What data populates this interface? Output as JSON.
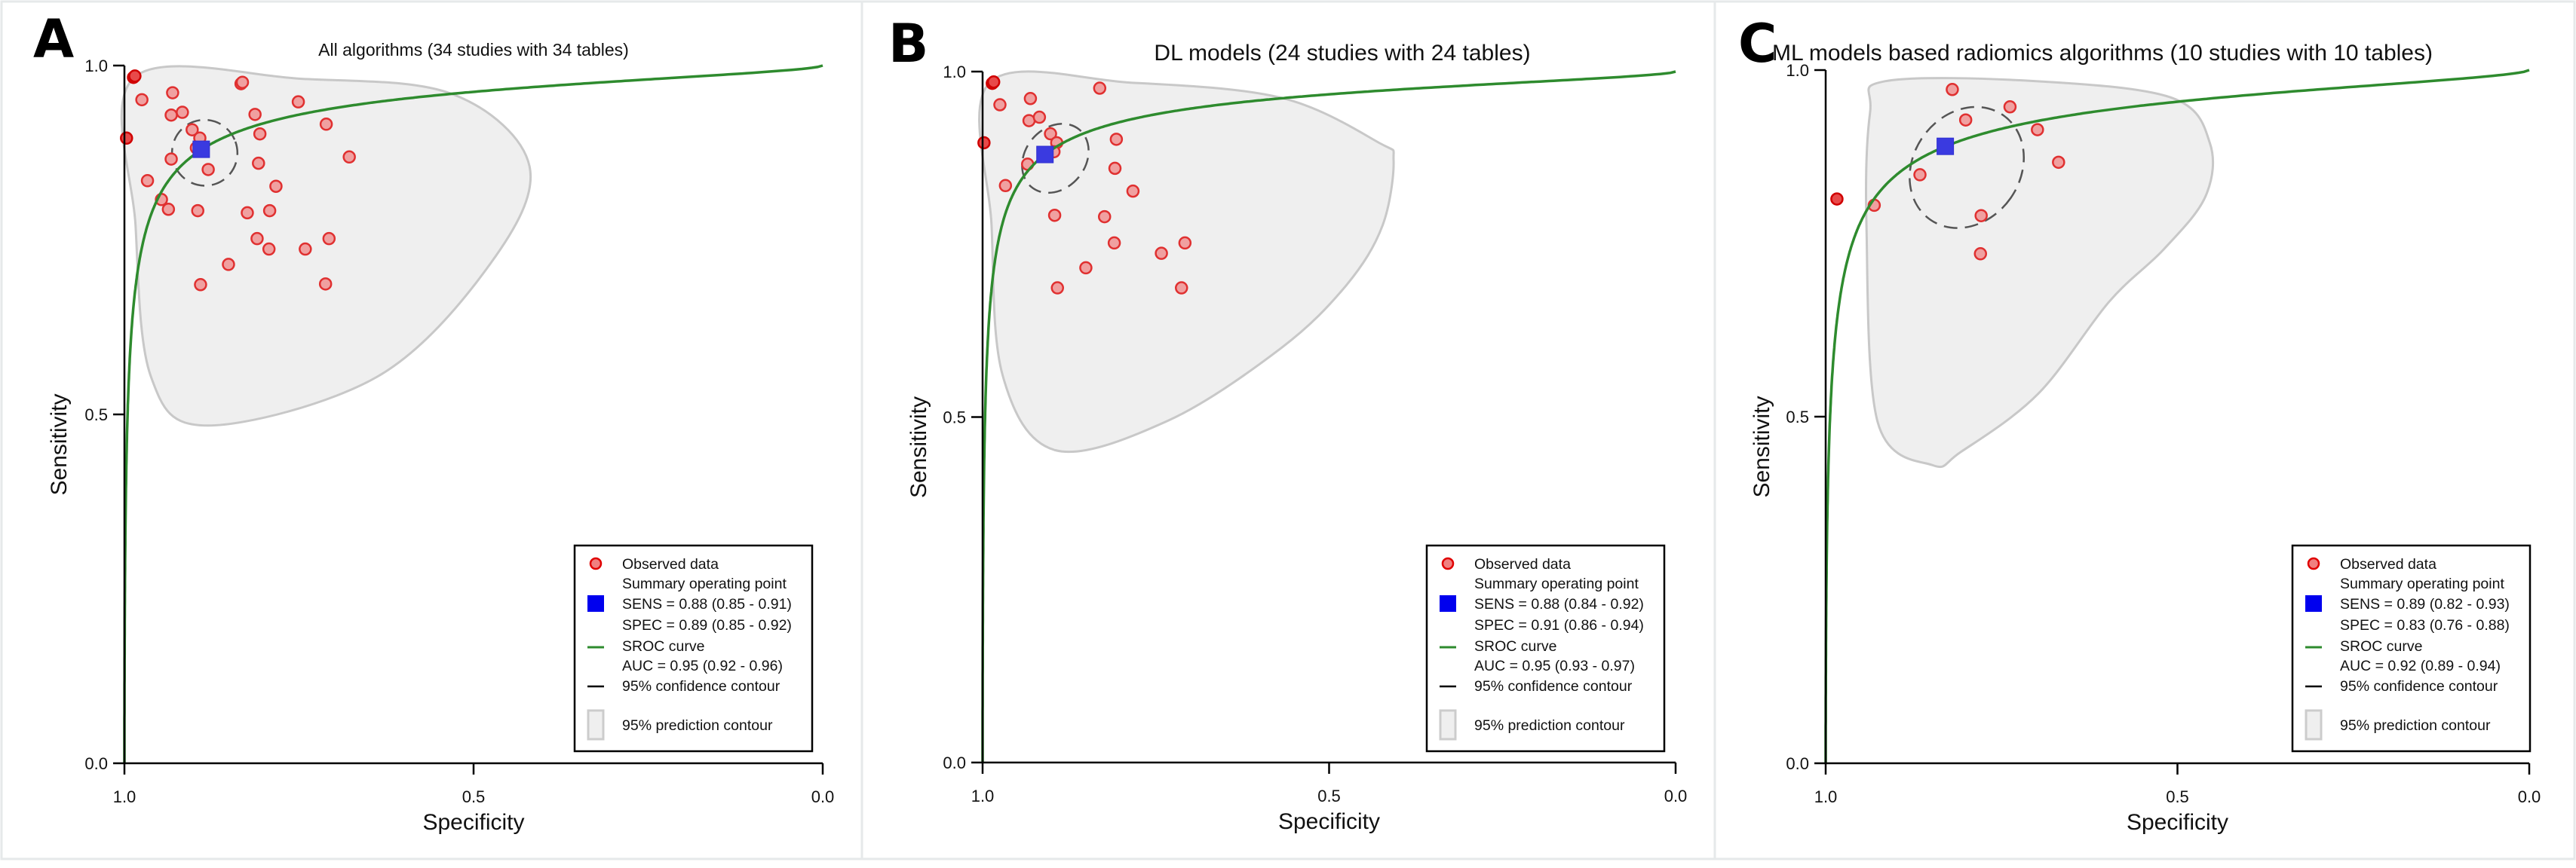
{
  "chart_data": [
    {
      "type": "scatter",
      "panel_label": "A",
      "title": "All algorithms (34 studies with 34 tables)",
      "xlabel": "Specificity",
      "ylabel": "Sensitivity",
      "xlim": [
        1.0,
        0.0
      ],
      "ylim": [
        0.0,
        1.0
      ],
      "xticks": [
        "1.0",
        "0.5",
        "0.0"
      ],
      "yticks": [
        "0.0",
        "0.5",
        "1.0"
      ],
      "grid": false,
      "legend_position": "bottom-right",
      "observed_data": [
        {
          "spec": 0.987,
          "sens": 0.983
        },
        {
          "spec": 0.985,
          "sens": 0.985
        },
        {
          "spec": 0.975,
          "sens": 0.951
        },
        {
          "spec": 0.931,
          "sens": 0.961
        },
        {
          "spec": 0.933,
          "sens": 0.929
        },
        {
          "spec": 0.917,
          "sens": 0.933
        },
        {
          "spec": 0.903,
          "sens": 0.908
        },
        {
          "spec": 0.892,
          "sens": 0.896
        },
        {
          "spec": 0.897,
          "sens": 0.882
        },
        {
          "spec": 0.997,
          "sens": 0.896
        },
        {
          "spec": 0.933,
          "sens": 0.866
        },
        {
          "spec": 0.88,
          "sens": 0.851
        },
        {
          "spec": 0.967,
          "sens": 0.835
        },
        {
          "spec": 0.947,
          "sens": 0.808
        },
        {
          "spec": 0.937,
          "sens": 0.794
        },
        {
          "spec": 0.895,
          "sens": 0.792
        },
        {
          "spec": 0.833,
          "sens": 0.974
        },
        {
          "spec": 0.831,
          "sens": 0.976
        },
        {
          "spec": 0.813,
          "sens": 0.93
        },
        {
          "spec": 0.806,
          "sens": 0.902
        },
        {
          "spec": 0.808,
          "sens": 0.86
        },
        {
          "spec": 0.783,
          "sens": 0.827
        },
        {
          "spec": 0.824,
          "sens": 0.789
        },
        {
          "spec": 0.792,
          "sens": 0.792
        },
        {
          "spec": 0.81,
          "sens": 0.752
        },
        {
          "spec": 0.793,
          "sens": 0.737
        },
        {
          "spec": 0.851,
          "sens": 0.715
        },
        {
          "spec": 0.891,
          "sens": 0.686
        },
        {
          "spec": 0.751,
          "sens": 0.948
        },
        {
          "spec": 0.711,
          "sens": 0.916
        },
        {
          "spec": 0.678,
          "sens": 0.869
        },
        {
          "spec": 0.707,
          "sens": 0.752
        },
        {
          "spec": 0.741,
          "sens": 0.737
        },
        {
          "spec": 0.712,
          "sens": 0.687
        }
      ],
      "summary_point": {
        "sens": 0.88,
        "sens_ci": [
          0.85,
          0.91
        ],
        "spec": 0.89,
        "spec_ci": [
          0.85,
          0.92
        ]
      },
      "confidence_contour": {
        "spec_range": [
          0.94,
          0.83
        ],
        "sens_range": [
          0.92,
          0.83
        ]
      },
      "sroc": {
        "auc": 0.95,
        "auc_ci": [
          0.92,
          0.96
        ],
        "logit_intercept": 3.24,
        "logit_slope": 0.6
      },
      "prediction_contour": [
        {
          "spec": 0.986,
          "sens": 0.983
        },
        {
          "spec": 0.746,
          "sens": 0.981
        },
        {
          "spec": 0.53,
          "sens": 0.959
        },
        {
          "spec": 0.42,
          "sens": 0.856
        },
        {
          "spec": 0.476,
          "sens": 0.716
        },
        {
          "spec": 0.638,
          "sens": 0.554
        },
        {
          "spec": 0.88,
          "sens": 0.484
        },
        {
          "spec": 0.962,
          "sens": 0.554
        },
        {
          "spec": 0.984,
          "sens": 0.77
        }
      ],
      "legend": {
        "observed": "Observed data",
        "summary_title": "Summary operating point",
        "sens_line": "SENS = 0.88 (0.85 - 0.91)",
        "spec_line": "SPEC = 0.89 (0.85 - 0.92)",
        "sroc_title": "SROC curve",
        "auc_line": "AUC = 0.95 (0.92 - 0.96)",
        "confidence": "95% confidence contour",
        "prediction": "95% prediction contour"
      }
    },
    {
      "type": "scatter",
      "panel_label": "B",
      "title": "DL models (24 studies with 24 tables)",
      "xlabel": "Specificity",
      "ylabel": "Sensitivity",
      "xlim": [
        1.0,
        0.0
      ],
      "ylim": [
        0.0,
        1.0
      ],
      "xticks": [
        "1.0",
        "0.5",
        "0.0"
      ],
      "yticks": [
        "0.0",
        "0.5",
        "1.0"
      ],
      "grid": false,
      "legend_position": "bottom-right",
      "observed_data": [
        {
          "spec": 0.986,
          "sens": 0.983
        },
        {
          "spec": 0.984,
          "sens": 0.985
        },
        {
          "spec": 0.975,
          "sens": 0.952
        },
        {
          "spec": 0.931,
          "sens": 0.961
        },
        {
          "spec": 0.933,
          "sens": 0.929
        },
        {
          "spec": 0.918,
          "sens": 0.934
        },
        {
          "spec": 0.902,
          "sens": 0.91
        },
        {
          "spec": 0.893,
          "sens": 0.897
        },
        {
          "spec": 0.897,
          "sens": 0.884
        },
        {
          "spec": 0.998,
          "sens": 0.897
        },
        {
          "spec": 0.935,
          "sens": 0.866
        },
        {
          "spec": 0.967,
          "sens": 0.835
        },
        {
          "spec": 0.831,
          "sens": 0.976
        },
        {
          "spec": 0.807,
          "sens": 0.902
        },
        {
          "spec": 0.809,
          "sens": 0.86
        },
        {
          "spec": 0.783,
          "sens": 0.827
        },
        {
          "spec": 0.896,
          "sens": 0.792
        },
        {
          "spec": 0.824,
          "sens": 0.79
        },
        {
          "spec": 0.81,
          "sens": 0.752
        },
        {
          "spec": 0.708,
          "sens": 0.752
        },
        {
          "spec": 0.742,
          "sens": 0.737
        },
        {
          "spec": 0.851,
          "sens": 0.716
        },
        {
          "spec": 0.892,
          "sens": 0.687
        },
        {
          "spec": 0.713,
          "sens": 0.687
        }
      ],
      "summary_point": {
        "sens": 0.88,
        "sens_ci": [
          0.84,
          0.92
        ],
        "spec": 0.91,
        "spec_ci": [
          0.86,
          0.94
        ]
      },
      "confidence_contour": {
        "spec_range": [
          0.946,
          0.844
        ],
        "sens_range": [
          0.926,
          0.823
        ]
      },
      "sroc": {
        "auc": 0.95,
        "auc_ci": [
          0.93,
          0.97
        ],
        "logit_intercept": 3.38,
        "logit_slope": 0.6
      },
      "prediction_contour": [
        {
          "spec": 0.99,
          "sens": 0.984
        },
        {
          "spec": 0.786,
          "sens": 0.984
        },
        {
          "spec": 0.569,
          "sens": 0.962
        },
        {
          "spec": 0.428,
          "sens": 0.897
        },
        {
          "spec": 0.407,
          "sens": 0.872
        },
        {
          "spec": 0.423,
          "sens": 0.777
        },
        {
          "spec": 0.475,
          "sens": 0.691
        },
        {
          "spec": 0.569,
          "sens": 0.6
        },
        {
          "spec": 0.732,
          "sens": 0.495
        },
        {
          "spec": 0.895,
          "sens": 0.452
        },
        {
          "spec": 0.971,
          "sens": 0.56
        },
        {
          "spec": 0.987,
          "sens": 0.777
        }
      ],
      "legend": {
        "observed": "Observed data",
        "summary_title": "Summary operating point",
        "sens_line": "SENS = 0.88 (0.84 - 0.92)",
        "spec_line": "SPEC = 0.91 (0.86 - 0.94)",
        "sroc_title": "SROC curve",
        "auc_line": "AUC = 0.95 (0.93 - 0.97)",
        "confidence": "95% confidence contour",
        "prediction": "95% prediction contour"
      }
    },
    {
      "type": "scatter",
      "panel_label": "C",
      "title": "ML models based radiomics algorithms (10 studies with 10 tables)",
      "xlabel": "Specificity",
      "ylabel": "Sensitivity",
      "xlim": [
        1.0,
        0.0
      ],
      "ylim": [
        0.0,
        1.0
      ],
      "xticks": [
        "1.0",
        "0.5",
        "0.0"
      ],
      "yticks": [
        "0.0",
        "0.5",
        "1.0"
      ],
      "grid": false,
      "legend_position": "bottom-right",
      "observed_data": [
        {
          "spec": 0.82,
          "sens": 0.972
        },
        {
          "spec": 0.738,
          "sens": 0.947
        },
        {
          "spec": 0.801,
          "sens": 0.928
        },
        {
          "spec": 0.699,
          "sens": 0.914
        },
        {
          "spec": 0.669,
          "sens": 0.867
        },
        {
          "spec": 0.866,
          "sens": 0.849
        },
        {
          "spec": 0.984,
          "sens": 0.814
        },
        {
          "spec": 0.931,
          "sens": 0.805
        },
        {
          "spec": 0.779,
          "sens": 0.79
        },
        {
          "spec": 0.78,
          "sens": 0.735
        }
      ],
      "summary_point": {
        "sens": 0.89,
        "sens_ci": [
          0.82,
          0.93
        ],
        "spec": 0.83,
        "spec_ci": [
          0.76,
          0.88
        ]
      },
      "confidence_contour": {
        "spec_range": [
          0.889,
          0.71
        ],
        "sens_range": [
          0.947,
          0.772
        ]
      },
      "sroc": {
        "auc": 0.92,
        "auc_ci": [
          0.89,
          0.94
        ],
        "logit_intercept": 3.04,
        "logit_slope": 0.6
      },
      "prediction_contour": [
        {
          "spec": 0.915,
          "sens": 0.984
        },
        {
          "spec": 0.701,
          "sens": 0.984
        },
        {
          "spec": 0.508,
          "sens": 0.96
        },
        {
          "spec": 0.454,
          "sens": 0.895
        },
        {
          "spec": 0.46,
          "sens": 0.818
        },
        {
          "spec": 0.519,
          "sens": 0.742
        },
        {
          "spec": 0.597,
          "sens": 0.666
        },
        {
          "spec": 0.698,
          "sens": 0.533
        },
        {
          "spec": 0.808,
          "sens": 0.449
        },
        {
          "spec": 0.848,
          "sens": 0.43
        },
        {
          "spec": 0.926,
          "sens": 0.492
        },
        {
          "spec": 0.942,
          "sens": 0.775
        },
        {
          "spec": 0.937,
          "sens": 0.938
        }
      ],
      "legend": {
        "observed": "Observed data",
        "summary_title": "Summary operating point",
        "sens_line": "SENS = 0.89 (0.82 - 0.93)",
        "spec_line": "SPEC = 0.83 (0.76 - 0.88)",
        "sroc_title": "SROC curve",
        "auc_line": "AUC = 0.92 (0.89 - 0.94)",
        "confidence": "95% confidence contour",
        "prediction": "95% prediction contour"
      }
    }
  ],
  "colors": {
    "observed_fill": "#f0a0a0",
    "observed_stroke": "#e03030",
    "summary": "#0000ee",
    "sroc": "#2e8b2e",
    "confidence": "#555555",
    "prediction_fill": "#efefef",
    "prediction_stroke": "#c8c8c8"
  }
}
